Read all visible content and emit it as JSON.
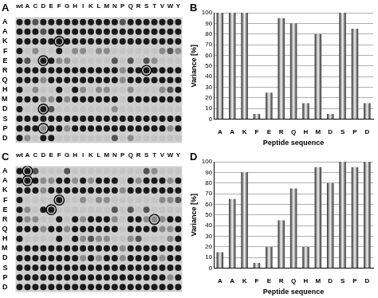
{
  "chart_data": [
    {
      "type": "heatmap",
      "panel": "A",
      "columns": [
        "wt",
        "A",
        "C",
        "D",
        "E",
        "F",
        "G",
        "H",
        "I",
        "K",
        "L",
        "M",
        "N",
        "P",
        "Q",
        "R",
        "S",
        "T",
        "V",
        "W",
        "Y"
      ],
      "rows": [
        "A",
        "A",
        "K",
        "F",
        "E",
        "R",
        "Q",
        "H",
        "M",
        "D",
        "S",
        "P",
        "D"
      ],
      "vlim": [
        0,
        3
      ],
      "intensity": [
        [
          3,
          3,
          2,
          3,
          3,
          3,
          3,
          3,
          3,
          3,
          3,
          3,
          3,
          2,
          3,
          3,
          3,
          3,
          3,
          3,
          3
        ],
        [
          3,
          3,
          3,
          2,
          3,
          3,
          3,
          3,
          3,
          3,
          3,
          3,
          3,
          3,
          3,
          3,
          3,
          3,
          3,
          3,
          3
        ],
        [
          3,
          3,
          3,
          3,
          3,
          3,
          3,
          3,
          3,
          3,
          3,
          3,
          3,
          3,
          3,
          3,
          3,
          3,
          3,
          3,
          3
        ],
        [
          3,
          0,
          1,
          0,
          0,
          3,
          0,
          1,
          1,
          0,
          1,
          1,
          0,
          0,
          0,
          0,
          0,
          0,
          1,
          2,
          1
        ],
        [
          3,
          2,
          0,
          3,
          3,
          1,
          1,
          0,
          0,
          0,
          0,
          0,
          2,
          0,
          2,
          0,
          2,
          1,
          0,
          0,
          0
        ],
        [
          3,
          3,
          3,
          3,
          3,
          3,
          3,
          3,
          3,
          3,
          3,
          3,
          3,
          1,
          3,
          3,
          3,
          3,
          3,
          3,
          3
        ],
        [
          3,
          3,
          3,
          1,
          3,
          3,
          3,
          3,
          3,
          3,
          3,
          3,
          3,
          1,
          3,
          3,
          3,
          3,
          3,
          3,
          3
        ],
        [
          3,
          0,
          1,
          0,
          0,
          3,
          0,
          3,
          1,
          0,
          1,
          1,
          0,
          0,
          1,
          0,
          0,
          0,
          1,
          2,
          3
        ],
        [
          3,
          3,
          3,
          1,
          1,
          3,
          1,
          3,
          3,
          3,
          3,
          3,
          3,
          0,
          3,
          3,
          3,
          3,
          3,
          3,
          3
        ],
        [
          3,
          0,
          0,
          3,
          2,
          0,
          0,
          0,
          0,
          0,
          0,
          0,
          1,
          0,
          0,
          0,
          0,
          0,
          0,
          0,
          0
        ],
        [
          3,
          3,
          3,
          3,
          3,
          3,
          3,
          3,
          3,
          3,
          3,
          3,
          3,
          3,
          3,
          3,
          3,
          3,
          3,
          3,
          3
        ],
        [
          3,
          3,
          3,
          1,
          3,
          3,
          1,
          3,
          3,
          3,
          3,
          3,
          3,
          3,
          3,
          3,
          3,
          3,
          3,
          1,
          3
        ],
        [
          3,
          1,
          0,
          3,
          3,
          0,
          0,
          0,
          0,
          0,
          0,
          0,
          2,
          0,
          1,
          0,
          0,
          0,
          0,
          0,
          0
        ]
      ],
      "circled": [
        [
          2,
          5
        ],
        [
          4,
          3
        ],
        [
          5,
          16
        ],
        [
          9,
          3
        ],
        [
          11,
          3
        ]
      ]
    },
    {
      "type": "bar",
      "panel": "B",
      "categories": [
        "A",
        "A",
        "K",
        "F",
        "E",
        "R",
        "Q",
        "H",
        "M",
        "D",
        "S",
        "P",
        "D"
      ],
      "values": [
        100,
        100,
        100,
        5,
        25,
        95,
        90,
        15,
        80,
        5,
        100,
        85,
        15
      ],
      "color": "#2a2a2a",
      "x_label": "Peptide sequence",
      "y_label": "Variance [%]",
      "ylim": [
        0,
        100
      ],
      "yticks": [
        0,
        10,
        20,
        30,
        40,
        50,
        60,
        70,
        80,
        90,
        100
      ],
      "grid": true
    },
    {
      "type": "heatmap",
      "panel": "C",
      "columns": [
        "wt",
        "A",
        "C",
        "D",
        "E",
        "F",
        "G",
        "H",
        "I",
        "K",
        "L",
        "M",
        "N",
        "P",
        "Q",
        "R",
        "S",
        "T",
        "V",
        "W",
        "Y"
      ],
      "rows": [
        "A",
        "A",
        "K",
        "F",
        "E",
        "R",
        "Q",
        "H",
        "M",
        "D",
        "S",
        "P",
        "D"
      ],
      "vlim": [
        0,
        3
      ],
      "intensity": [
        [
          3,
          3,
          2,
          0,
          0,
          0,
          2,
          0,
          0,
          0,
          0,
          0,
          0,
          0,
          0,
          0,
          2,
          1,
          0,
          0,
          0
        ],
        [
          3,
          3,
          3,
          1,
          1,
          3,
          3,
          1,
          3,
          1,
          3,
          3,
          3,
          0,
          3,
          1,
          3,
          3,
          3,
          1,
          3
        ],
        [
          3,
          3,
          3,
          1,
          3,
          3,
          3,
          3,
          3,
          3,
          3,
          3,
          3,
          1,
          3,
          3,
          3,
          3,
          3,
          3,
          3
        ],
        [
          3,
          0,
          0,
          0,
          0,
          3,
          0,
          0,
          1,
          0,
          1,
          1,
          0,
          0,
          0,
          0,
          0,
          0,
          1,
          1,
          2
        ],
        [
          3,
          1,
          0,
          3,
          3,
          0,
          0,
          0,
          0,
          0,
          0,
          0,
          2,
          0,
          2,
          0,
          2,
          0,
          0,
          0,
          0
        ],
        [
          3,
          1,
          1,
          0,
          0,
          3,
          0,
          3,
          1,
          3,
          3,
          3,
          1,
          0,
          3,
          3,
          1,
          1,
          1,
          3,
          3
        ],
        [
          3,
          3,
          3,
          1,
          3,
          3,
          1,
          3,
          3,
          3,
          3,
          3,
          3,
          0,
          3,
          3,
          3,
          3,
          1,
          1,
          3
        ],
        [
          3,
          0,
          0,
          0,
          0,
          3,
          0,
          3,
          1,
          2,
          1,
          1,
          0,
          0,
          1,
          2,
          0,
          0,
          0,
          1,
          3
        ],
        [
          3,
          3,
          3,
          3,
          3,
          3,
          3,
          3,
          3,
          3,
          3,
          3,
          3,
          1,
          3,
          3,
          3,
          3,
          3,
          3,
          3
        ],
        [
          3,
          3,
          3,
          3,
          3,
          3,
          3,
          3,
          1,
          3,
          1,
          3,
          3,
          1,
          3,
          3,
          3,
          3,
          1,
          3,
          3
        ],
        [
          3,
          3,
          3,
          3,
          3,
          3,
          3,
          3,
          3,
          3,
          3,
          3,
          3,
          3,
          3,
          3,
          3,
          3,
          3,
          3,
          3
        ],
        [
          3,
          3,
          3,
          3,
          3,
          3,
          3,
          3,
          3,
          3,
          3,
          3,
          3,
          3,
          3,
          3,
          3,
          3,
          3,
          1,
          3
        ],
        [
          3,
          3,
          3,
          3,
          3,
          3,
          3,
          3,
          3,
          3,
          3,
          3,
          3,
          3,
          3,
          3,
          3,
          3,
          3,
          3,
          3
        ]
      ],
      "circled": [
        [
          0,
          1
        ],
        [
          1,
          1
        ],
        [
          3,
          5
        ],
        [
          4,
          4
        ],
        [
          5,
          17
        ]
      ]
    },
    {
      "type": "bar",
      "panel": "D",
      "categories": [
        "A",
        "A",
        "K",
        "F",
        "E",
        "R",
        "Q",
        "H",
        "M",
        "D",
        "S",
        "P",
        "D"
      ],
      "values": [
        15,
        65,
        90,
        5,
        20,
        45,
        75,
        20,
        95,
        80,
        100,
        95,
        100
      ],
      "color": "#2a2a2a",
      "x_label": "Peptide sequence",
      "y_label": "Variance [%]",
      "ylim": [
        0,
        100
      ],
      "yticks": [
        0,
        10,
        20,
        30,
        40,
        50,
        60,
        70,
        80,
        90,
        100
      ],
      "grid": true
    }
  ]
}
